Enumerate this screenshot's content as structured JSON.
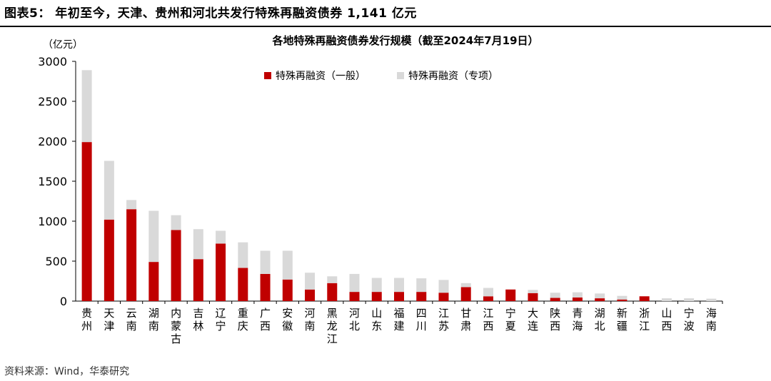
{
  "figure_title": "图表5：  年初至今，天津、贵州和河北共发行特殊再融资债券 1,141 亿元",
  "source_text": "资料来源：Wind，华泰研究",
  "colors": {
    "general": "#C00000",
    "special": "#D9D9D9"
  },
  "chart_data": {
    "type": "bar",
    "stacked": true,
    "title": "各地特殊再融资债券发行规模（截至2024年7月19日）",
    "unit_label": "（亿元）",
    "ylim": [
      0,
      3000
    ],
    "yticks": [
      0,
      500,
      1000,
      1500,
      2000,
      2500,
      3000
    ],
    "grid": false,
    "legend_position": "top-center",
    "categories": [
      "贵州",
      "天津",
      "云南",
      "湖南",
      "内蒙古",
      "吉林",
      "辽宁",
      "重庆",
      "广西",
      "安徽",
      "河南",
      "黑龙江",
      "河北",
      "山东",
      "福建",
      "四川",
      "江苏",
      "甘肃",
      "江西",
      "宁夏",
      "大连",
      "陕西",
      "青海",
      "湖北",
      "新疆",
      "浙江",
      "山西",
      "宁波",
      "海南"
    ],
    "series": [
      {
        "name": "特殊再融资（一般）",
        "values": [
          1990,
          1020,
          1150,
          490,
          890,
          525,
          720,
          415,
          340,
          270,
          145,
          225,
          115,
          115,
          115,
          115,
          105,
          175,
          60,
          145,
          100,
          40,
          45,
          35,
          20,
          60,
          0,
          0,
          0
        ]
      },
      {
        "name": "特殊再融资（专项）",
        "values": [
          900,
          735,
          115,
          640,
          185,
          375,
          160,
          320,
          290,
          360,
          210,
          85,
          225,
          175,
          175,
          170,
          160,
          50,
          105,
          0,
          40,
          65,
          65,
          60,
          45,
          0,
          35,
          35,
          30
        ]
      }
    ]
  }
}
